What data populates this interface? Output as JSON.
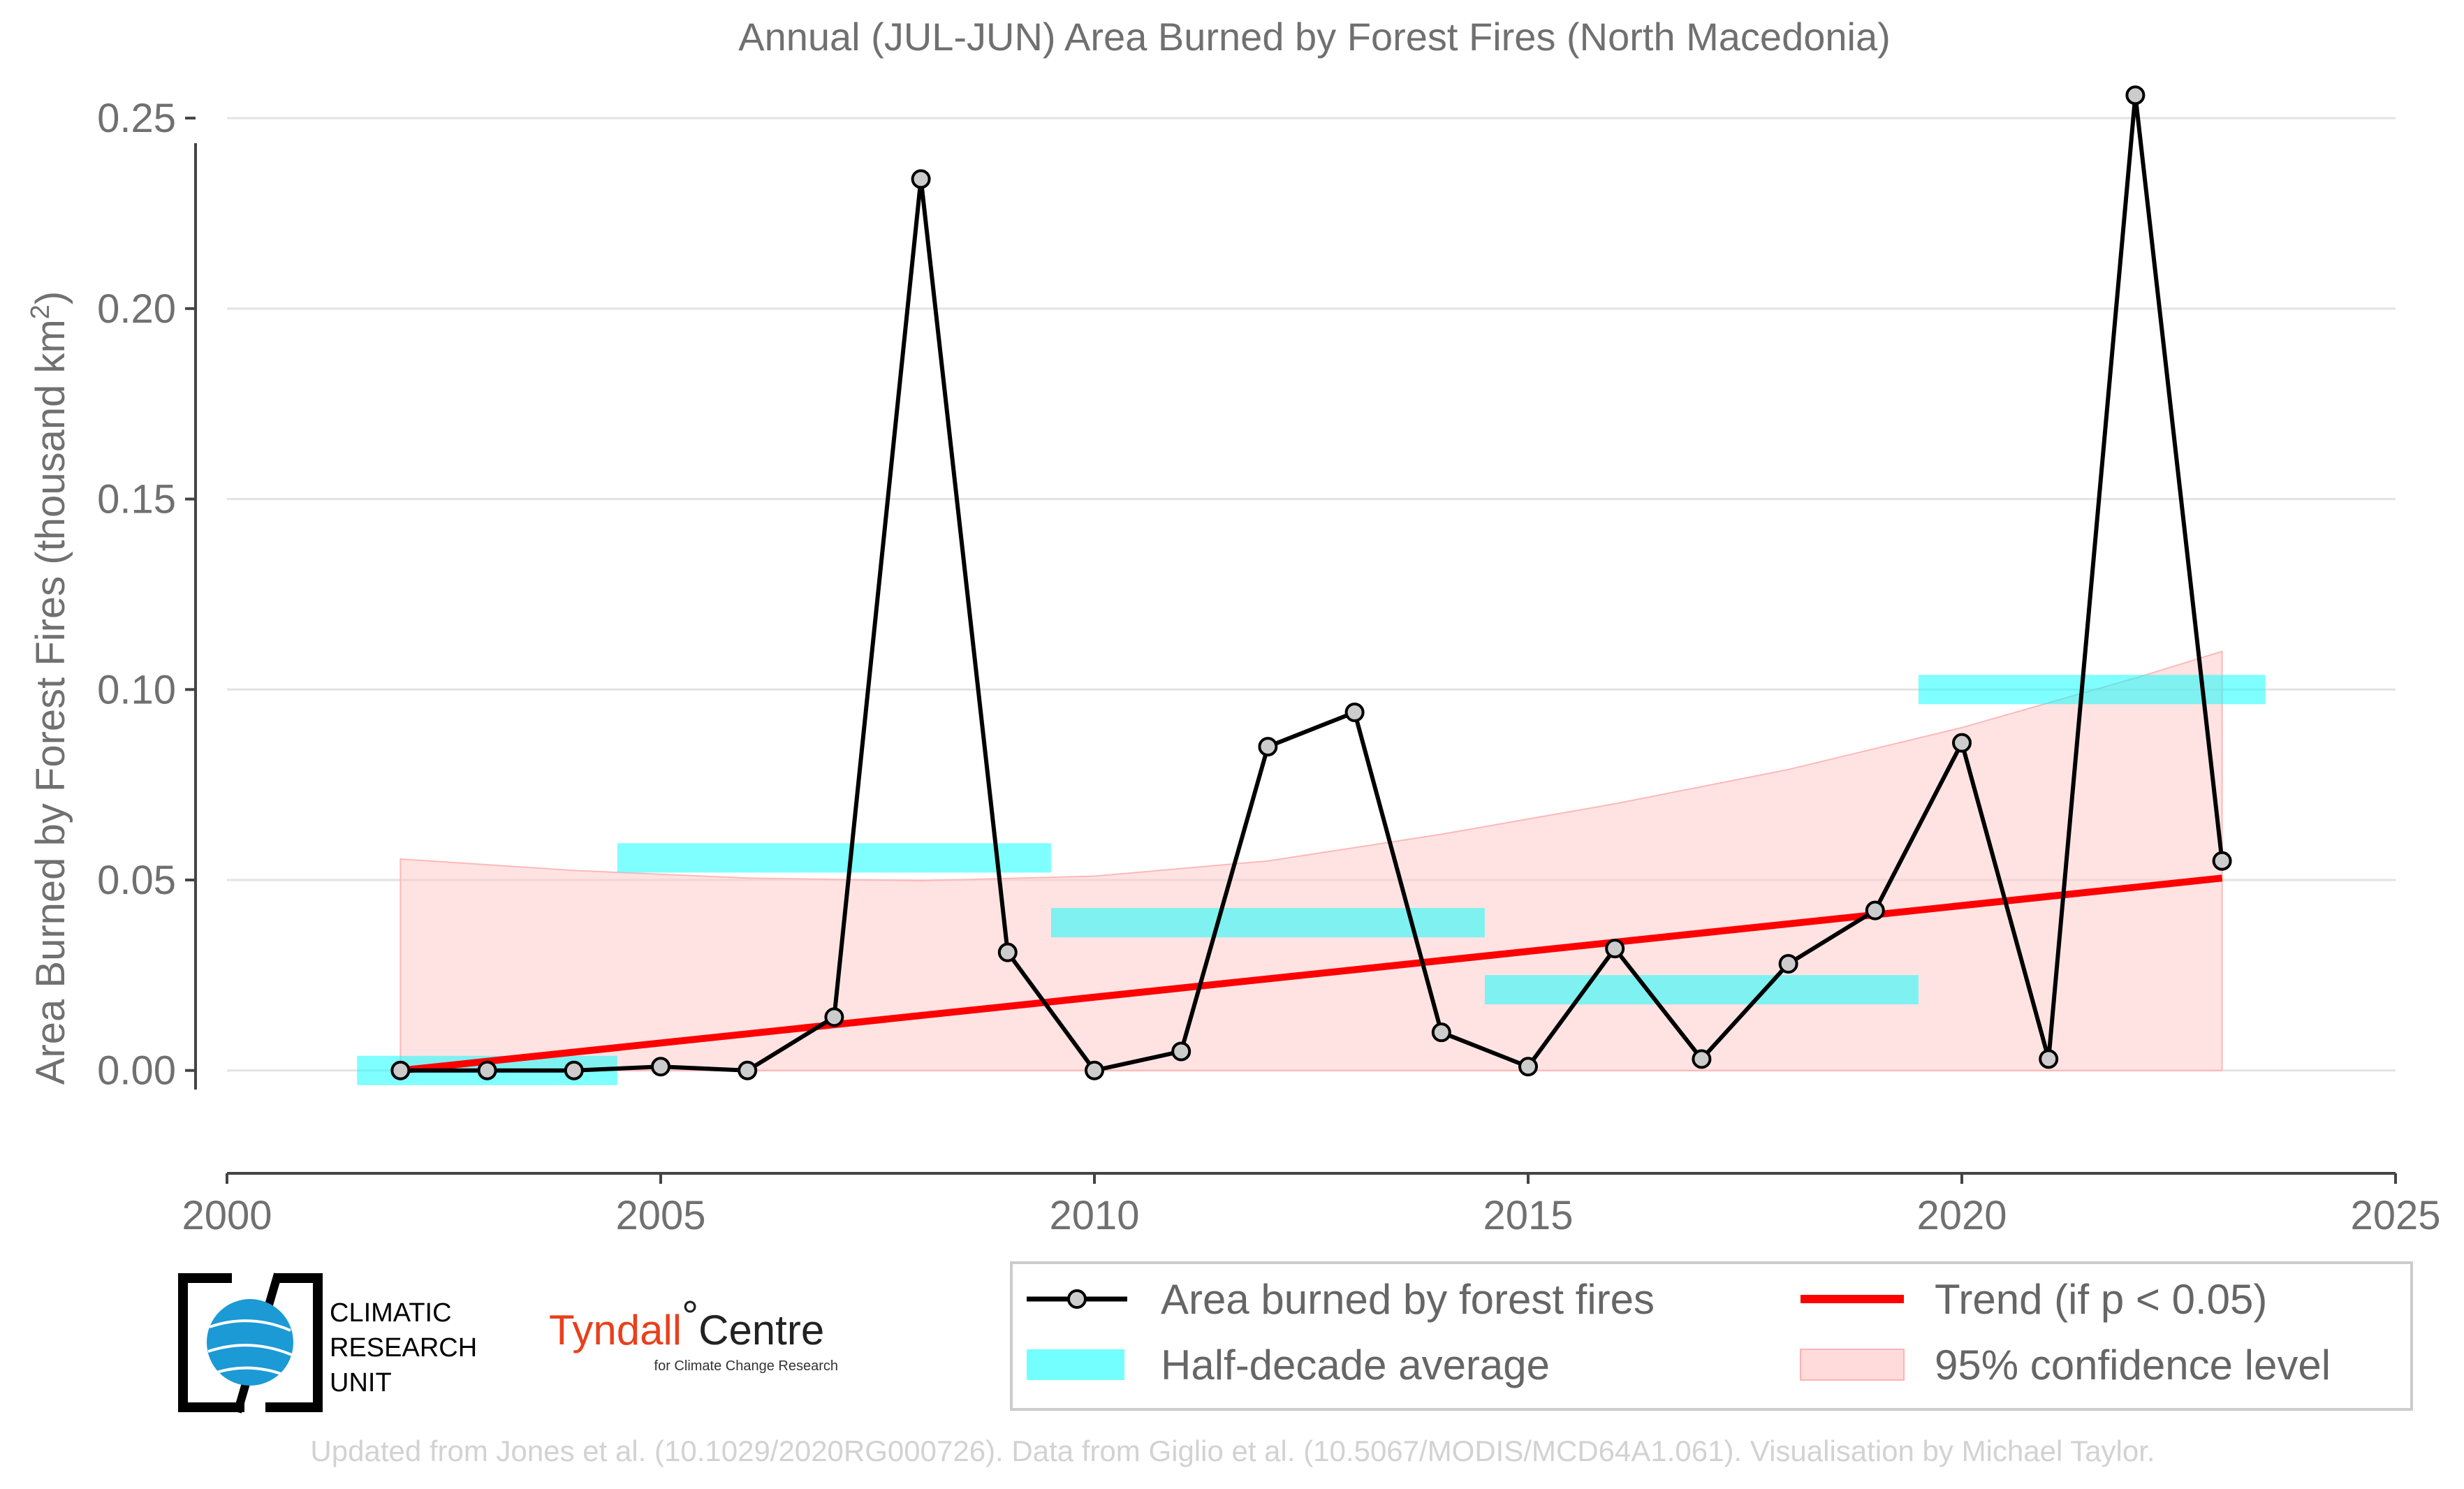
{
  "chart_data": {
    "type": "line",
    "title": "Annual (JUL-JUN) Area Burned by Forest Fires (North Macedonia)",
    "xlabel": "",
    "ylabel_main": "Area Burned by Forest Fires (thousand km",
    "ylabel_sup": "2",
    "ylabel_close": ")",
    "xlim": [
      2000,
      2025
    ],
    "ylim": [
      -0.0215,
      0.27
    ],
    "x_ticks": [
      2000,
      2005,
      2010,
      2015,
      2020,
      2025
    ],
    "x_tick_labels": [
      "2000",
      "2005",
      "2010",
      "2015",
      "2020",
      "2025"
    ],
    "y_ticks": [
      0.0,
      0.05,
      0.1,
      0.15,
      0.2,
      0.25
    ],
    "y_tick_labels": [
      "0.00",
      "0.05",
      "0.10",
      "0.15",
      "0.20",
      "0.25"
    ],
    "grid": "horizontal",
    "legend_position": "bottom-right",
    "series": [
      {
        "name": "Area burned by forest fires",
        "x": [
          2002,
          2003,
          2004,
          2005,
          2006,
          2007,
          2008,
          2009,
          2010,
          2011,
          2012,
          2013,
          2014,
          2015,
          2016,
          2017,
          2018,
          2019,
          2020,
          2021,
          2022,
          2023
        ],
        "y": [
          0.0,
          0.0,
          0.0,
          0.001,
          0.0,
          0.014,
          0.234,
          0.031,
          0.0,
          0.005,
          0.085,
          0.094,
          0.01,
          0.001,
          0.032,
          0.003,
          0.028,
          0.042,
          0.086,
          0.003,
          0.256,
          0.055
        ],
        "color": "#000000",
        "marker_fill": "#cccccc"
      },
      {
        "name": "Half-decade average",
        "segments": [
          {
            "x0": 2001.5,
            "x1": 2004.5,
            "y": 0.0
          },
          {
            "x0": 2004.5,
            "x1": 2009.5,
            "y": 0.0558
          },
          {
            "x0": 2009.5,
            "x1": 2014.5,
            "y": 0.0388
          },
          {
            "x0": 2014.5,
            "x1": 2019.5,
            "y": 0.0212
          },
          {
            "x0": 2019.5,
            "x1": 2023.5,
            "y": 0.1
          }
        ],
        "color": "#00ffff"
      },
      {
        "name": "Trend (if p < 0.05)",
        "x": [
          2002,
          2023
        ],
        "y": [
          0.0,
          0.0505
        ],
        "color": "#ff0000"
      },
      {
        "name": "95% confidence level",
        "x": [
          2002,
          2004,
          2006,
          2008,
          2010,
          2012,
          2014,
          2016,
          2018,
          2020,
          2022,
          2023
        ],
        "upper": [
          0.0555,
          0.0525,
          0.0505,
          0.0498,
          0.051,
          0.055,
          0.062,
          0.07,
          0.079,
          0.09,
          0.103,
          0.11
        ],
        "lower": [
          0,
          0,
          0,
          0,
          0,
          0,
          0,
          0,
          0,
          0,
          0,
          0
        ],
        "color": "#ffcccc"
      }
    ]
  },
  "logos": {
    "cru_lines": [
      "CLIMATIC",
      "RESEARCH",
      "UNIT"
    ],
    "tyndall_name": "Tyndall",
    "tyndall_degree": "°",
    "tyndall_centre": "Centre",
    "tyndall_sub": "for Climate Change Research"
  },
  "footer": "Updated from Jones et al. (10.1029/2020RG000726). Data from Giglio et al. (10.5067/MODIS/MCD64A1.061). Visualisation by Michael Taylor."
}
